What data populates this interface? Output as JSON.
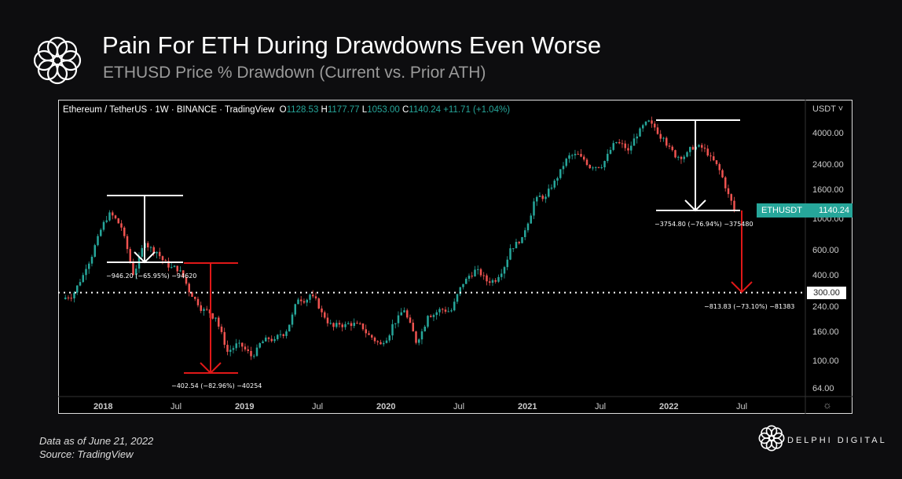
{
  "header": {
    "title": "Pain For ETH During Drawdowns Even Worse",
    "subtitle": "ETHUSD Price % Drawdown (Current vs. Prior ATH)"
  },
  "legend": {
    "symbol": "Ethereum / TetherUS · 1W · BINANCE · TradingView",
    "o_label": "O",
    "o": "1128.53",
    "h_label": "H",
    "h": "1177.77",
    "l_label": "L",
    "l": "1053.00",
    "c_label": "C",
    "c": "1140.24",
    "change": "+11.71 (+1.04%)"
  },
  "currency": "USDT ˅",
  "tag": {
    "symbol": "ETHUSDT",
    "price": "1140.24",
    "color": "#26a69a"
  },
  "level_label": "300.00",
  "annotations": {
    "a1": "−946.20 (−65.95%) −94620",
    "a2": "−402.54 (−82.96%) −40254",
    "a3": "−3754.80 (−76.94%) −375480",
    "a4": "−813.83 (−73.10%) −81383"
  },
  "footer": {
    "date": "Data as of  June 21, 2022",
    "source": "Source: TradingView",
    "brand": "DELPHI DIGITAL"
  },
  "chart_data": {
    "type": "candlestick",
    "title": "Ethereum / TetherUS 1W",
    "yscale": "log",
    "ylim": [
      55,
      5000
    ],
    "y_ticks": [
      4000,
      2400,
      1600,
      1000,
      600,
      400,
      240,
      160,
      100,
      64
    ],
    "y_tick_labels": [
      "4000.00",
      "2400.00",
      "1600.00",
      "1000.00",
      "600.00",
      "400.00",
      "240.00",
      "160.00",
      "100.00",
      "64.00"
    ],
    "x_ticks": [
      "2018",
      "Jul",
      "2019",
      "Jul",
      "2020",
      "Jul",
      "2021",
      "Jul",
      "2022",
      "Jul"
    ],
    "x_tick_months": [
      3,
      9,
      15,
      21,
      27,
      33,
      39,
      45,
      51,
      57
    ],
    "horizontal_line": 300,
    "monthly_close_approx": [
      300,
      440,
      750,
      1100,
      860,
      400,
      670,
      580,
      450,
      430,
      280,
      230,
      200,
      115,
      133,
      107,
      136,
      141,
      160,
      268,
      290,
      218,
      172,
      180,
      182,
      151,
      130,
      180,
      225,
      133,
      206,
      230,
      225,
      345,
      435,
      360,
      386,
      615,
      737,
      1314,
      1419,
      1918,
      2773,
      2714,
      2275,
      2530,
      3433,
      3000,
      4288,
      4630,
      3680,
      2680,
      2920,
      3280,
      2730,
      1940,
      1140
    ],
    "start": "Oct 2017",
    "up_color": "#26a69a",
    "down_color": "#ef5350"
  }
}
